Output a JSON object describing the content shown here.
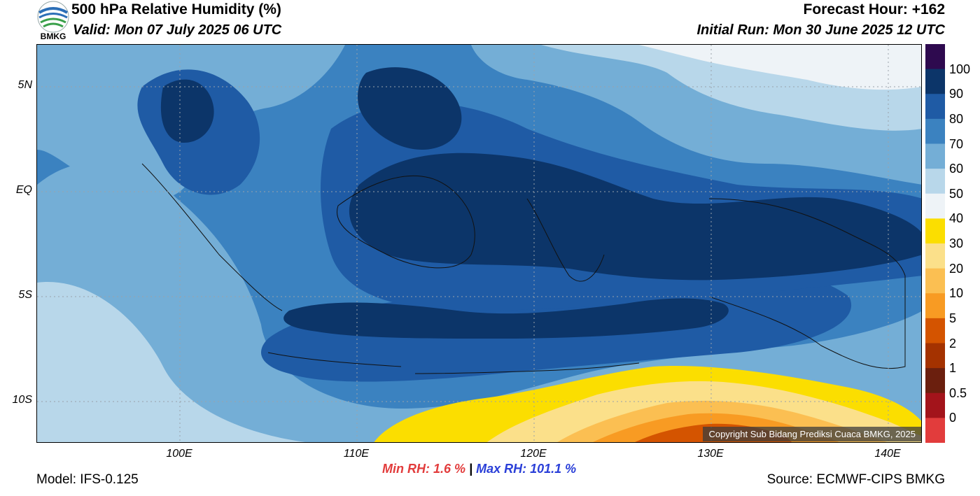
{
  "header": {
    "title": "500 hPa Relative Humidity (%)",
    "valid": "Valid: Mon 07 July 2025 06 UTC",
    "forecast_hour": "Forecast Hour: +162",
    "initial_run": "Initial Run: Mon 30 June 2025 12 UTC"
  },
  "logo": {
    "text": "BMKG",
    "icon": "bmkg-logo-icon"
  },
  "map": {
    "lat_labels": [
      "5N",
      "EQ",
      "5S",
      "10S"
    ],
    "lon_labels": [
      "100E",
      "110E",
      "120E",
      "130E",
      "140E"
    ],
    "copyright": "Copyright Sub Bidang Prediksi Cuaca BMKG, 2025"
  },
  "colorbar": {
    "labels": [
      "100",
      "90",
      "80",
      "70",
      "60",
      "50",
      "40",
      "30",
      "20",
      "10",
      "5",
      "2",
      "1",
      "0.5",
      "0"
    ],
    "colors": [
      "#2e0a4f",
      "#0c3569",
      "#1f5ba5",
      "#3b82c0",
      "#74aed6",
      "#b8d7ea",
      "#eef3f7",
      "#fbde00",
      "#fbe08a",
      "#fbbf52",
      "#f89b23",
      "#d45400",
      "#a43200",
      "#6b1f0e",
      "#a3141b",
      "#e23c3c"
    ]
  },
  "stats": {
    "min_rh": "Min RH:   1.6 %",
    "separator": "|",
    "max_rh": "Max RH: 101.1 %"
  },
  "footer": {
    "model": "Model: IFS-0.125",
    "source": "Source: ECMWF-CIPS BMKG"
  }
}
